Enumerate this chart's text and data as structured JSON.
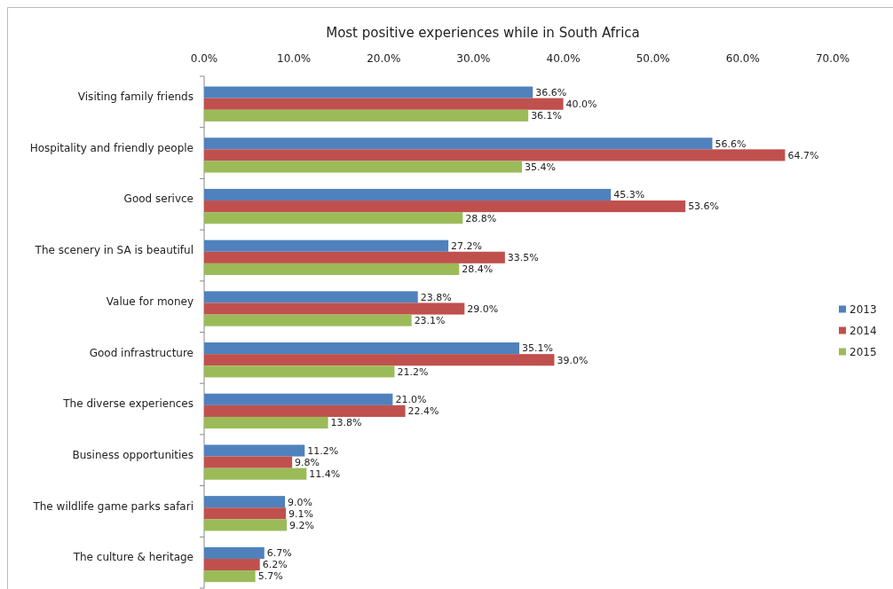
{
  "chart_data": {
    "type": "bar",
    "orientation": "horizontal",
    "title": "Most positive experiences while in South Africa",
    "categories": [
      "Visiting family friends",
      "Hospitality and friendly people",
      "Good serivce",
      "The scenery in SA is beautiful",
      "Value for money",
      "Good infrastructure",
      "The diverse experiences",
      "Business opportunities",
      "The wildlife game parks safari",
      "The culture & heritage"
    ],
    "series": [
      {
        "name": "2013",
        "color": "#4f81bd",
        "values": [
          36.6,
          56.6,
          45.3,
          27.2,
          23.8,
          35.1,
          21.0,
          11.2,
          9.0,
          6.7
        ],
        "value_labels": [
          "36.6%",
          "56.6%",
          "45.3%",
          "27.2%",
          "23.8%",
          "35.1%",
          "21.0%",
          "11.2%",
          "9.0%",
          "6.7%"
        ]
      },
      {
        "name": "2014",
        "color": "#c0504d",
        "values": [
          40.0,
          64.7,
          53.6,
          33.5,
          29.0,
          39.0,
          22.4,
          9.8,
          9.1,
          6.2
        ],
        "value_labels": [
          "40.0%",
          "64.7%",
          "53.6%",
          "33.5%",
          "29.0%",
          "39.0%",
          "22.4%",
          "9.8%",
          "9.1%",
          "6.2%"
        ]
      },
      {
        "name": "2015",
        "color": "#9bbb59",
        "values": [
          36.1,
          35.4,
          28.8,
          28.4,
          23.1,
          21.2,
          13.8,
          11.4,
          9.2,
          5.7
        ],
        "value_labels": [
          "36.1%",
          "35.4%",
          "28.8%",
          "28.4%",
          "23.1%",
          "21.2%",
          "13.8%",
          "11.4%",
          "9.2%",
          "5.7%"
        ]
      }
    ],
    "xlim": [
      0,
      70
    ],
    "xticks": [
      {
        "value": 0,
        "label": "0.0%"
      },
      {
        "value": 10,
        "label": "10.0%"
      },
      {
        "value": 20,
        "label": "20.0%"
      },
      {
        "value": 30,
        "label": "30.0%"
      },
      {
        "value": 40,
        "label": "40.0%"
      },
      {
        "value": 50,
        "label": "50.0%"
      },
      {
        "value": 60,
        "label": "60.0%"
      },
      {
        "value": 70,
        "label": "70.0%"
      }
    ],
    "legend": "right"
  }
}
